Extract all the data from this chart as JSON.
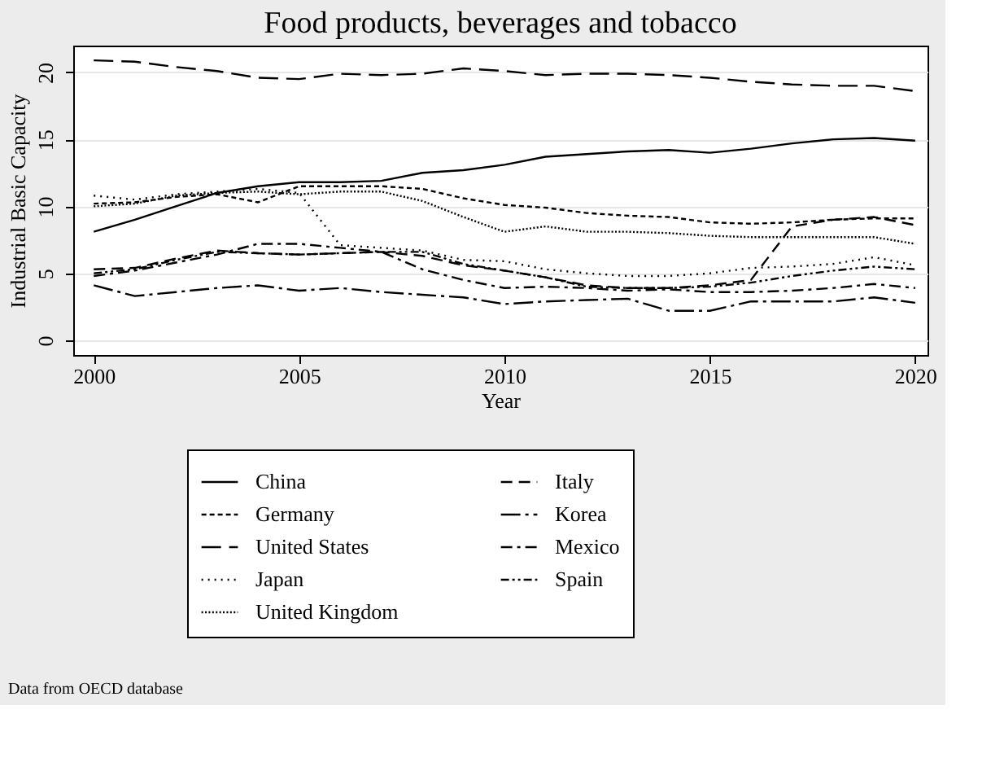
{
  "chart_data": {
    "type": "line",
    "title": "Food products, beverages and tobacco",
    "xlabel": "Year",
    "ylabel": "Industrial Basic Capacity",
    "x": [
      2000,
      2001,
      2002,
      2003,
      2004,
      2005,
      2006,
      2007,
      2008,
      2009,
      2010,
      2011,
      2012,
      2013,
      2014,
      2015,
      2016,
      2017,
      2018,
      2019,
      2020
    ],
    "series": [
      {
        "name": "China",
        "color": "#000000",
        "line_style": "solid",
        "values": [
          8.1,
          9.0,
          10.0,
          11.0,
          11.5,
          11.8,
          11.8,
          11.9,
          12.5,
          12.7,
          13.1,
          13.7,
          13.9,
          14.1,
          14.2,
          14.0,
          14.3,
          14.7,
          15.0,
          15.1,
          14.9
        ]
      },
      {
        "name": "Germany",
        "color": "#000000",
        "line_style": "dashed",
        "values": [
          10.2,
          10.3,
          10.7,
          10.9,
          10.3,
          11.5,
          11.5,
          11.5,
          11.3,
          10.6,
          10.1,
          9.9,
          9.5,
          9.3,
          9.2,
          8.8,
          8.7,
          8.8,
          9.0,
          9.1,
          9.1
        ]
      },
      {
        "name": "United States",
        "color": "#000000",
        "line_style": "dashed",
        "values": [
          20.9,
          20.8,
          20.4,
          20.1,
          19.6,
          19.5,
          19.9,
          19.8,
          19.9,
          20.3,
          20.1,
          19.8,
          19.9,
          19.9,
          19.8,
          19.6,
          19.3,
          19.1,
          19.0,
          19.0,
          18.6
        ]
      },
      {
        "name": "Japan",
        "color": "#000000",
        "line_style": "dotted",
        "values": [
          10.8,
          10.5,
          10.9,
          11.1,
          11.3,
          11.0,
          7.1,
          6.9,
          6.7,
          6.0,
          5.9,
          5.3,
          5.0,
          4.8,
          4.8,
          5.0,
          5.4,
          5.5,
          5.7,
          6.2,
          5.6
        ]
      },
      {
        "name": "United Kingdom",
        "color": "#000000",
        "line_style": "dotted",
        "values": [
          10.0,
          10.2,
          10.8,
          11.0,
          11.1,
          10.9,
          11.1,
          11.1,
          10.4,
          9.2,
          8.1,
          8.5,
          8.1,
          8.1,
          8.0,
          7.8,
          7.7,
          7.7,
          7.7,
          7.7,
          7.2
        ]
      },
      {
        "name": "Italy",
        "color": "#000000",
        "line_style": "dashed",
        "values": [
          5.3,
          5.4,
          6.1,
          6.7,
          6.5,
          6.4,
          6.5,
          6.6,
          6.3,
          5.6,
          5.2,
          4.7,
          4.1,
          3.9,
          3.9,
          4.1,
          4.5,
          8.5,
          9.0,
          9.2,
          8.6
        ]
      },
      {
        "name": "Korea",
        "color": "#000000",
        "line_style": "dashed",
        "values": [
          4.1,
          3.3,
          3.6,
          3.9,
          4.1,
          3.7,
          3.9,
          3.6,
          3.4,
          3.2,
          2.7,
          2.9,
          3.0,
          3.1,
          2.2,
          2.2,
          2.9,
          2.9,
          2.9,
          3.2,
          2.8
        ]
      },
      {
        "name": "Mexico",
        "color": "#000000",
        "line_style": "dashed",
        "values": [
          4.8,
          5.2,
          5.8,
          6.4,
          7.2,
          7.2,
          6.9,
          6.6,
          5.3,
          4.5,
          3.9,
          4.0,
          3.9,
          3.7,
          3.8,
          3.6,
          3.6,
          3.7,
          3.9,
          4.2,
          3.9
        ]
      },
      {
        "name": "Spain",
        "color": "#000000",
        "line_style": "dashed",
        "values": [
          5.0,
          5.3,
          6.0,
          6.6,
          6.5,
          6.4,
          6.5,
          6.6,
          6.6,
          5.7,
          5.2,
          4.7,
          4.0,
          3.9,
          3.9,
          4.0,
          4.3,
          4.8,
          5.2,
          5.5,
          5.3
        ]
      }
    ],
    "xlim": [
      1999.5,
      2020.3
    ],
    "xticks": [
      2000,
      2005,
      2010,
      2015,
      2020
    ],
    "ylim": [
      -1.1,
      22
    ],
    "yticks": [
      0,
      5,
      10,
      15,
      20
    ],
    "grid": "y",
    "legend": "bottom",
    "marker": "none",
    "annotations": [
      "Data from OECD database"
    ]
  }
}
